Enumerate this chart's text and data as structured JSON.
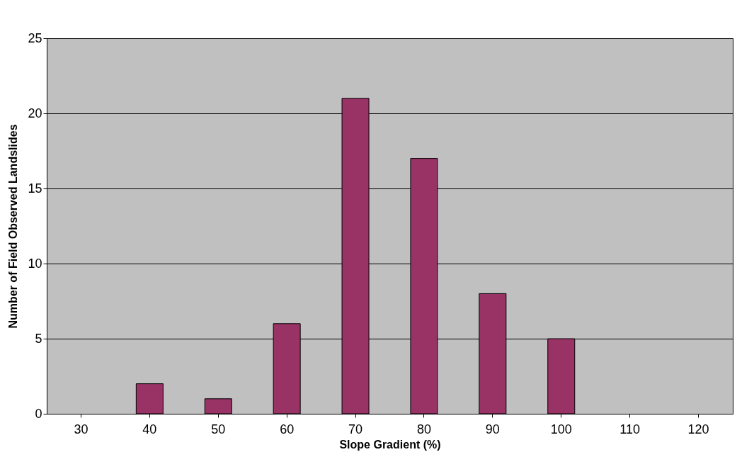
{
  "chart_data": {
    "type": "bar",
    "xlabel": "Slope Gradient (%)",
    "ylabel": "Number of Field Observed Landslides",
    "categories": [
      "30",
      "40",
      "50",
      "60",
      "70",
      "80",
      "90",
      "100",
      "110",
      "120"
    ],
    "values": [
      0,
      2,
      1,
      6,
      21,
      17,
      8,
      5,
      0,
      0
    ],
    "color": "#993366",
    "ylim": [
      0,
      25
    ],
    "yticks": [
      0,
      5,
      10,
      15,
      20,
      25
    ],
    "grid": "y"
  }
}
